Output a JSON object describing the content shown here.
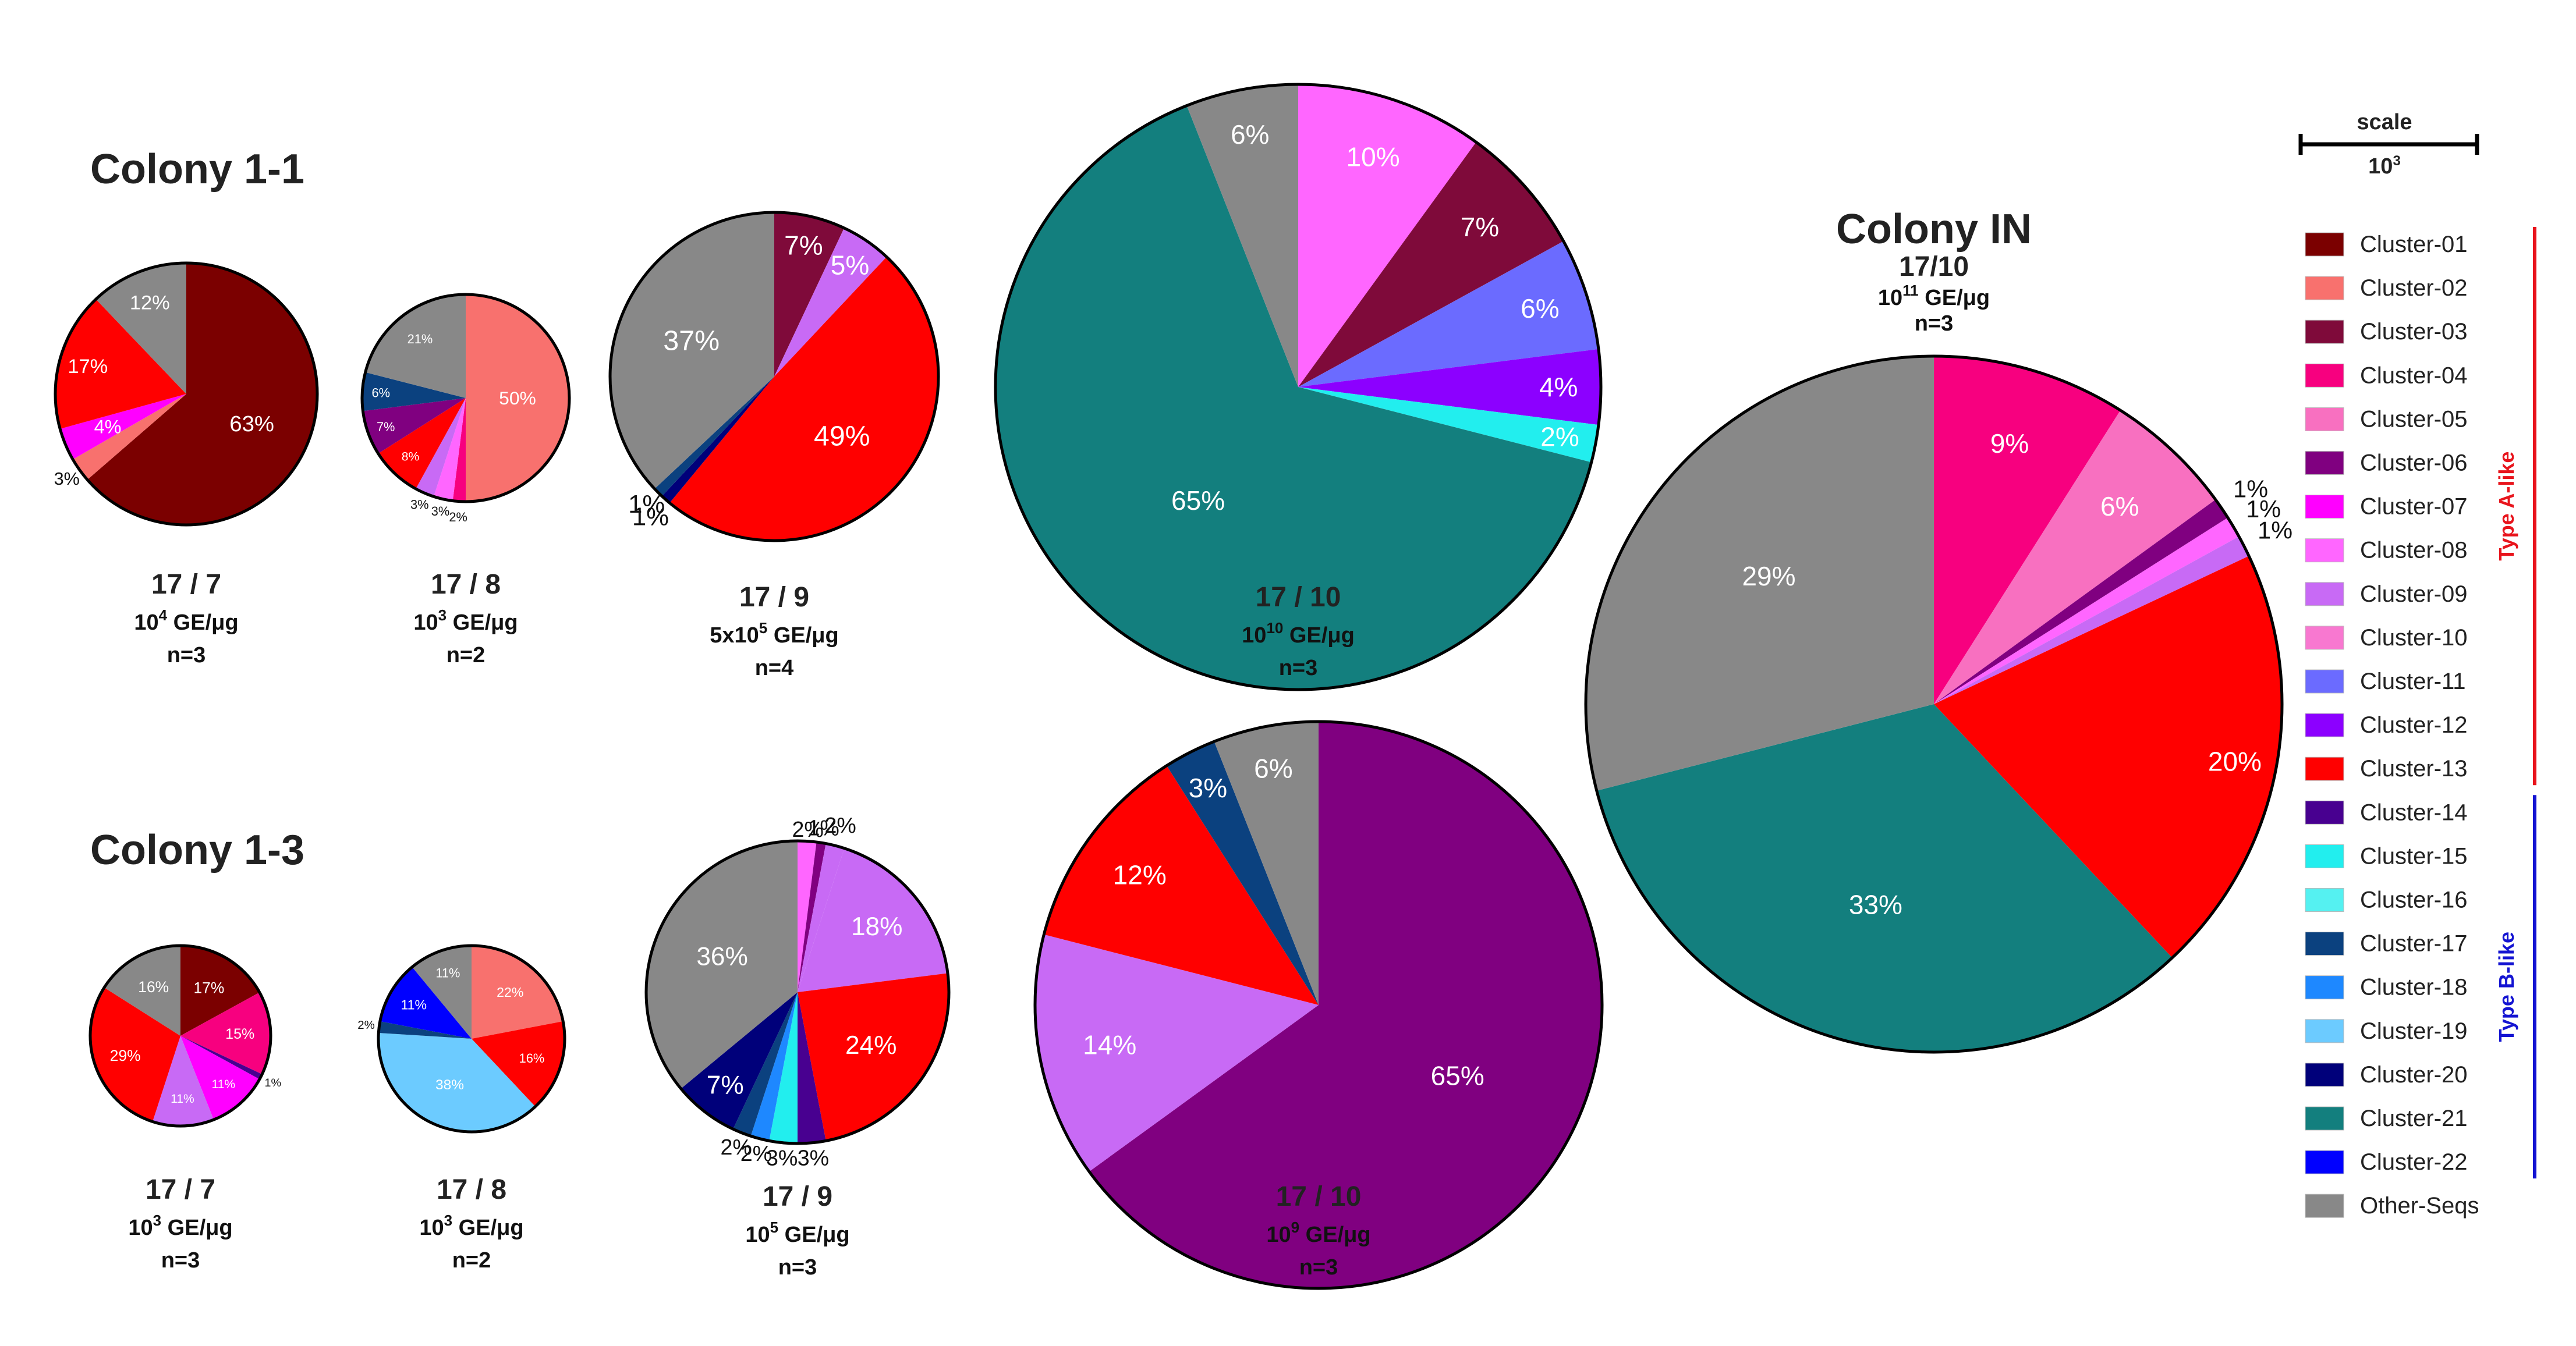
{
  "chart_data": {
    "type": "pie",
    "palette": {
      "c01": "#7B0000",
      "c02": "#F8716E",
      "c03": "#7F0A3A",
      "c04": "#F7007F",
      "c05": "#F870C0",
      "c06": "#800080",
      "c07": "#FF00FF",
      "c08": "#FF66FF",
      "c09": "#C86AF5",
      "c10": "#F878D0",
      "c11": "#6B6BFF",
      "c12": "#8C00FF",
      "c13": "#FF0000",
      "c14": "#480090",
      "c15": "#22EEEE",
      "c16": "#55F1F1",
      "c17": "#0B417F",
      "c18": "#1E88FF",
      "c19": "#6CCBFF",
      "c20": "#00007A",
      "c21": "#137F7E",
      "c22": "#0000FF",
      "other": "#888888"
    },
    "groups": {
      "colony11": {
        "title": "Colony 1-1"
      },
      "colony13": {
        "title": "Colony 1-3"
      },
      "colonyIN": {
        "title": "Colony IN"
      }
    },
    "charts": [
      {
        "group": "colony11",
        "date": "17 / 7",
        "ge_base": "10",
        "ge_exp": "4",
        "ge_unit": " GE/μg",
        "n": "n=3",
        "slices": [
          {
            "cluster": "c01",
            "value": 63,
            "label": "63%"
          },
          {
            "cluster": "c02",
            "value": 3,
            "label": "3%"
          },
          {
            "cluster": "c07",
            "value": 4,
            "label": "4%"
          },
          {
            "cluster": "c13",
            "value": 17,
            "label": "17%"
          },
          {
            "cluster": "other",
            "value": 12,
            "label": "12%"
          }
        ]
      },
      {
        "group": "colony11",
        "date": "17 / 8",
        "ge_base": "10",
        "ge_exp": "3",
        "ge_unit": " GE/μg",
        "n": "n=2",
        "slices": [
          {
            "cluster": "c02",
            "value": 50,
            "label": "50%"
          },
          {
            "cluster": "c04",
            "value": 2,
            "label": "2%"
          },
          {
            "cluster": "c08",
            "value": 3,
            "label": "3%"
          },
          {
            "cluster": "c09",
            "value": 3,
            "label": "3%"
          },
          {
            "cluster": "c13",
            "value": 8,
            "label": "8%"
          },
          {
            "cluster": "c06",
            "value": 7,
            "label": "7%"
          },
          {
            "cluster": "c17",
            "value": 6,
            "label": "6%"
          },
          {
            "cluster": "other",
            "value": 21,
            "label": "21%"
          }
        ]
      },
      {
        "group": "colony11",
        "date": "17 / 9",
        "ge_base": "5x10",
        "ge_exp": "5",
        "ge_unit": " GE/μg",
        "n": "n=4",
        "slices": [
          {
            "cluster": "c03",
            "value": 7,
            "label": "7%"
          },
          {
            "cluster": "c09",
            "value": 5,
            "label": "5%"
          },
          {
            "cluster": "c13",
            "value": 49,
            "label": "49%"
          },
          {
            "cluster": "c20",
            "value": 1,
            "label": "1%"
          },
          {
            "cluster": "c17",
            "value": 1,
            "label": "1%"
          },
          {
            "cluster": "other",
            "value": 37,
            "label": "37%"
          }
        ]
      },
      {
        "group": "colony11",
        "date": "17 / 10",
        "ge_base": "10",
        "ge_exp": "10",
        "ge_unit": " GE/μg",
        "n": "n=3",
        "slices": [
          {
            "cluster": "c08",
            "value": 10,
            "label": "10%"
          },
          {
            "cluster": "c03",
            "value": 7,
            "label": "7%"
          },
          {
            "cluster": "c11",
            "value": 6,
            "label": "6%"
          },
          {
            "cluster": "c12",
            "value": 4,
            "label": "4%"
          },
          {
            "cluster": "c15",
            "value": 2,
            "label": "2%"
          },
          {
            "cluster": "c21",
            "value": 65,
            "label": "65%"
          },
          {
            "cluster": "other",
            "value": 6,
            "label": "6%"
          }
        ]
      },
      {
        "group": "colony13",
        "date": "17 / 7",
        "ge_base": "10",
        "ge_exp": "3",
        "ge_unit": " GE/μg",
        "n": "n=3",
        "slices": [
          {
            "cluster": "c01",
            "value": 17,
            "label": "17%"
          },
          {
            "cluster": "c04",
            "value": 15,
            "label": "15%"
          },
          {
            "cluster": "c14",
            "value": 1,
            "label": "1%"
          },
          {
            "cluster": "c07",
            "value": 11,
            "label": "11%"
          },
          {
            "cluster": "c09",
            "value": 11,
            "label": "11%"
          },
          {
            "cluster": "c13",
            "value": 29,
            "label": "29%"
          },
          {
            "cluster": "other",
            "value": 16,
            "label": "16%"
          }
        ]
      },
      {
        "group": "colony13",
        "date": "17 / 8",
        "ge_base": "10",
        "ge_exp": "3",
        "ge_unit": " GE/μg",
        "n": "n=2",
        "slices": [
          {
            "cluster": "c02",
            "value": 22,
            "label": "22%"
          },
          {
            "cluster": "c13",
            "value": 16,
            "label": "16%"
          },
          {
            "cluster": "c19",
            "value": 38,
            "label": "38%"
          },
          {
            "cluster": "c17",
            "value": 2,
            "label": "2%"
          },
          {
            "cluster": "c22",
            "value": 11,
            "label": "11%"
          },
          {
            "cluster": "other",
            "value": 11,
            "label": "11%"
          }
        ]
      },
      {
        "group": "colony13",
        "date": "17 / 9",
        "ge_base": "10",
        "ge_exp": "5",
        "ge_unit": " GE/μg",
        "n": "n=3",
        "slices": [
          {
            "cluster": "c08",
            "value": 2,
            "label": "2%"
          },
          {
            "cluster": "c06",
            "value": 1,
            "label": "1%"
          },
          {
            "cluster": "c09",
            "value": 2,
            "label": "2%"
          },
          {
            "cluster": "c09",
            "value": 18,
            "label": "18%"
          },
          {
            "cluster": "c13",
            "value": 24,
            "label": "24%"
          },
          {
            "cluster": "c14",
            "value": 3,
            "label": "3%"
          },
          {
            "cluster": "c15",
            "value": 3,
            "label": "3%"
          },
          {
            "cluster": "c18",
            "value": 2,
            "label": "2%"
          },
          {
            "cluster": "c17",
            "value": 2,
            "label": "2%"
          },
          {
            "cluster": "c20",
            "value": 7,
            "label": "7%"
          },
          {
            "cluster": "other",
            "value": 36,
            "label": "36%"
          }
        ]
      },
      {
        "group": "colony13",
        "date": "17 / 10",
        "ge_base": "10",
        "ge_exp": "9",
        "ge_unit": " GE/μg",
        "n": "n=3",
        "slices": [
          {
            "cluster": "c06",
            "value": 65,
            "label": "65%"
          },
          {
            "cluster": "c09",
            "value": 14,
            "label": "14%"
          },
          {
            "cluster": "c13",
            "value": 12,
            "label": "12%"
          },
          {
            "cluster": "c17",
            "value": 3,
            "label": "3%"
          },
          {
            "cluster": "other",
            "value": 6,
            "label": "6%"
          }
        ]
      },
      {
        "group": "colonyIN",
        "date": "17/10",
        "ge_base": "10",
        "ge_exp": "11",
        "ge_unit": " GE/μg",
        "n": "n=3",
        "slices": [
          {
            "cluster": "c04",
            "value": 9,
            "label": "9%"
          },
          {
            "cluster": "c05",
            "value": 6,
            "label": "6%"
          },
          {
            "cluster": "c06",
            "value": 1,
            "label": "1%"
          },
          {
            "cluster": "c08",
            "value": 1,
            "label": "1%"
          },
          {
            "cluster": "c09",
            "value": 1,
            "label": "1%"
          },
          {
            "cluster": "c13",
            "value": 20,
            "label": "20%"
          },
          {
            "cluster": "c21",
            "value": 33,
            "label": "33%"
          },
          {
            "cluster": "other",
            "value": 29,
            "label": "29%"
          }
        ]
      }
    ],
    "scale": {
      "label": "scale",
      "base": "10",
      "exp": "3"
    },
    "legend": {
      "items": [
        {
          "key": "c01",
          "label": "Cluster-01"
        },
        {
          "key": "c02",
          "label": "Cluster-02"
        },
        {
          "key": "c03",
          "label": "Cluster-03"
        },
        {
          "key": "c04",
          "label": "Cluster-04"
        },
        {
          "key": "c05",
          "label": "Cluster-05"
        },
        {
          "key": "c06",
          "label": "Cluster-06"
        },
        {
          "key": "c07",
          "label": "Cluster-07"
        },
        {
          "key": "c08",
          "label": "Cluster-08"
        },
        {
          "key": "c09",
          "label": "Cluster-09"
        },
        {
          "key": "c10",
          "label": "Cluster-10"
        },
        {
          "key": "c11",
          "label": "Cluster-11"
        },
        {
          "key": "c12",
          "label": "Cluster-12"
        },
        {
          "key": "c13",
          "label": "Cluster-13"
        },
        {
          "key": "c14",
          "label": "Cluster-14"
        },
        {
          "key": "c15",
          "label": "Cluster-15"
        },
        {
          "key": "c16",
          "label": "Cluster-16"
        },
        {
          "key": "c17",
          "label": "Cluster-17"
        },
        {
          "key": "c18",
          "label": "Cluster-18"
        },
        {
          "key": "c19",
          "label": "Cluster-19"
        },
        {
          "key": "c20",
          "label": "Cluster-20"
        },
        {
          "key": "c21",
          "label": "Cluster-21"
        },
        {
          "key": "c22",
          "label": "Cluster-22"
        },
        {
          "key": "other",
          "label": "Other-Seqs"
        }
      ],
      "type_a": {
        "label": "Type A-like",
        "color": "#E8141C"
      },
      "type_b": {
        "label": "Type B-like",
        "color": "#1414D2"
      }
    }
  }
}
